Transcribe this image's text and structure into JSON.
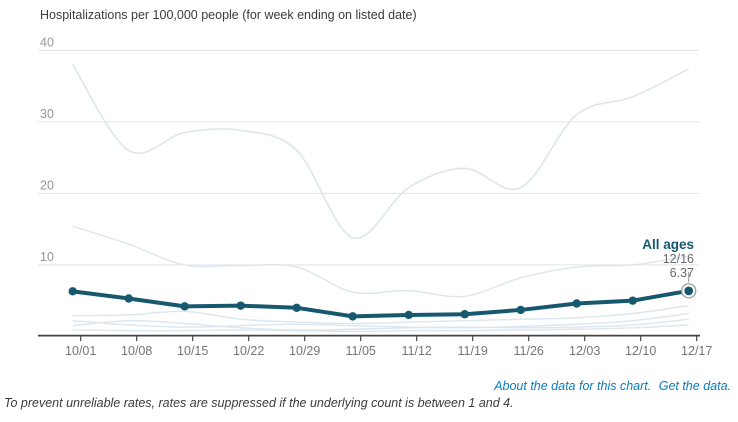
{
  "title": "Hospitalizations per 100,000 people (for week ending on listed date)",
  "footnote": "To prevent unreliable rates, rates are suppressed if the underlying count is between 1 and 4.",
  "links": {
    "about": "About the data for this chart.",
    "get_data": "Get the data."
  },
  "colors": {
    "accent": "#16596f",
    "link": "#0b7cc1",
    "grid": "#e3e3e3",
    "axis": "#444444",
    "x_tick_label": "#757575",
    "y_tick_label": "#969696",
    "faded_line": "#dce6ee",
    "annotation_text": "#6b6b6b",
    "marker_ring": "#9e9e9e",
    "background": "#ffffff"
  },
  "chart_data": {
    "type": "line",
    "title": "Hospitalizations per 100,000 people (for week ending on listed date)",
    "xlabel": "",
    "ylabel": "",
    "categories": [
      "10/01",
      "10/08",
      "10/15",
      "10/22",
      "10/29",
      "11/05",
      "11/12",
      "11/19",
      "11/26",
      "12/03",
      "12/10",
      "12/17"
    ],
    "ylim": [
      0,
      42
    ],
    "yticks": [
      10,
      20,
      30,
      40
    ],
    "grid": "horizontal",
    "legend_position": "none",
    "annotation": {
      "series_label": "All ages",
      "date_label": "12/16",
      "value_label": "6.37",
      "value": 6.37
    },
    "series": [
      {
        "name": "unlabeled-faded-1",
        "emphasis": false,
        "values": [
          38,
          26,
          28.5,
          28.8,
          26,
          13.8,
          20.8,
          23.5,
          20.8,
          31,
          33.5,
          37.4
        ]
      },
      {
        "name": "unlabeled-faded-2",
        "emphasis": false,
        "values": [
          15.4,
          12.9,
          10,
          9.9,
          9.7,
          6.2,
          6.4,
          5.6,
          8.2,
          9.7,
          10,
          11.2
        ]
      },
      {
        "name": "unlabeled-faded-3",
        "emphasis": false,
        "values": [
          2.9,
          3.0,
          3.5,
          2.4,
          2.0,
          1.8,
          2.0,
          2.2,
          2.4,
          2.6,
          3.2,
          4.3
        ]
      },
      {
        "name": "unlabeled-faded-4",
        "emphasis": false,
        "values": [
          2.2,
          1.6,
          1.3,
          1.5,
          1.7,
          1.5,
          1.3,
          1.2,
          1.4,
          1.7,
          2.2,
          3.2
        ]
      },
      {
        "name": "unlabeled-faded-5",
        "emphasis": false,
        "values": [
          1.5,
          2.2,
          1.8,
          1.2,
          0.9,
          1.0,
          1.2,
          1.3,
          1.2,
          1.3,
          1.6,
          2.4
        ]
      },
      {
        "name": "unlabeled-faded-6",
        "emphasis": false,
        "values": [
          0.9,
          0.8,
          0.8,
          0.9,
          0.8,
          0.7,
          0.8,
          0.8,
          0.9,
          1.0,
          1.2,
          1.6
        ]
      },
      {
        "name": "All ages",
        "emphasis": true,
        "values": [
          6.3,
          5.3,
          4.2,
          4.3,
          4.0,
          2.8,
          3.0,
          3.1,
          3.7,
          4.6,
          5.0,
          6.37
        ]
      }
    ]
  }
}
